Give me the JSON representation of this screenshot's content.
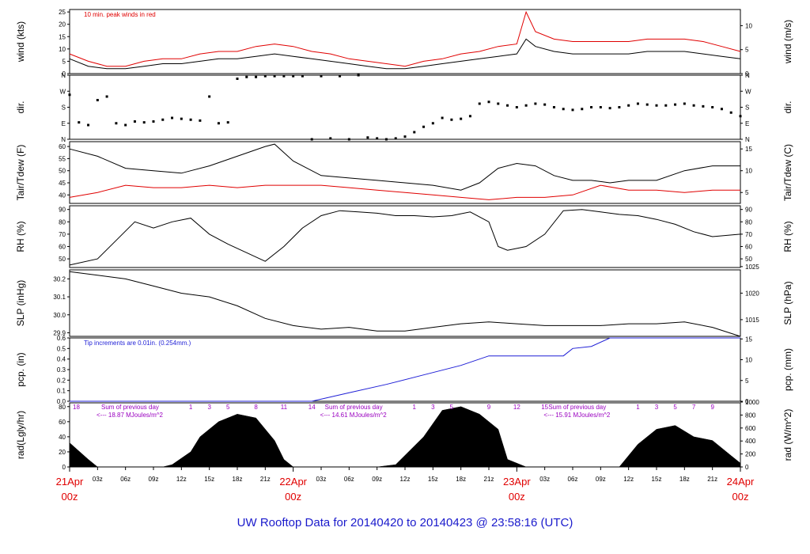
{
  "colors": {
    "black": "#000000",
    "red": "#e00000",
    "blue": "#1f1fd6",
    "purple": "#9a00c0",
    "title": "#1a1acc"
  },
  "title": "UW Rooftop Data for 20140420  to  20140423 @ 23:58:16  (UTC)",
  "x_axis": {
    "hour_labels": [
      "03z",
      "06z",
      "09z",
      "12z",
      "15z",
      "18z",
      "21z"
    ],
    "day_labels": [
      {
        "hour": 0,
        "date": "21Apr",
        "time": "00z"
      },
      {
        "hour": 24,
        "date": "22Apr",
        "time": "00z"
      },
      {
        "hour": 48,
        "date": "23Apr",
        "time": "00z"
      },
      {
        "hour": 72,
        "date": "24Apr",
        "time": "00z"
      }
    ]
  },
  "panels": {
    "wind": {
      "ylabel_left": "wind (kts)",
      "ylabel_right": "wind (m/s)",
      "left_ticks": [
        "0",
        "5",
        "10",
        "15",
        "20",
        "25"
      ],
      "right_ticks": [
        "0",
        "5",
        "10"
      ],
      "note": "10 min. peak winds in red"
    },
    "dir": {
      "ylabel_left": "dir.",
      "ylabel_right": "dir.",
      "ticks": [
        "N",
        "E",
        "S",
        "W",
        "N"
      ]
    },
    "temp": {
      "ylabel_left": "Tair/Tdew (F)",
      "ylabel_right": "Tair/Tdew (C)",
      "left_ticks": [
        "40",
        "45",
        "50",
        "55",
        "60"
      ],
      "right_ticks": [
        "5",
        "10",
        "15"
      ]
    },
    "rh": {
      "ylabel_left": "RH (%)",
      "ylabel_right": "RH (%)",
      "ticks": [
        "50",
        "60",
        "70",
        "80",
        "90"
      ]
    },
    "slp": {
      "ylabel_left": "SLP (inHg)",
      "ylabel_right": "SLP (hPa)",
      "left_ticks": [
        "29.9",
        "30.0",
        "30.1",
        "30.2"
      ],
      "right_ticks": [
        "1015",
        "1020",
        "1025"
      ]
    },
    "pcp": {
      "ylabel_left": "pcp. (in)",
      "ylabel_right": "pcp. (mm)",
      "left_ticks": [
        "0.0",
        "0.1",
        "0.2",
        "0.3",
        "0.4",
        "0.5",
        "0.6"
      ],
      "right_ticks": [
        "0",
        "5",
        "10",
        "15"
      ],
      "note": "Tip increments are 0.01in. (0.254mm.)"
    },
    "rad": {
      "ylabel_left": "rad(Lgly/hr)",
      "ylabel_right": "rad (W/m^2)",
      "left_ticks": [
        "0",
        "20",
        "40",
        "60",
        "80"
      ],
      "right_ticks": [
        "0",
        "200",
        "400",
        "600",
        "800",
        "1000"
      ]
    }
  },
  "rad_annotations": [
    {
      "sum_label": "Sum of previous day",
      "value_label": "<--- 18.87 MJoules/m^2",
      "first_hour": "18",
      "hours": [
        "1",
        "3",
        "5",
        "8",
        "11",
        "14"
      ]
    },
    {
      "sum_label": "Sum of previous day",
      "value_label": "<--- 14.61 MJoules/m^2",
      "hours": [
        "1",
        "3",
        "5",
        "9",
        "12",
        "15"
      ]
    },
    {
      "sum_label": "Sum of previous day",
      "value_label": "<--- 15.91 MJoules/m^2",
      "hours": [
        "1",
        "3",
        "5",
        "7",
        "9"
      ]
    }
  ],
  "chart_data": [
    {
      "type": "line",
      "ylabel": "wind (kts)",
      "ylim": [
        0,
        26
      ],
      "x_unit": "hours since 21Apr 00z",
      "xlim": [
        0,
        72
      ],
      "series": [
        {
          "color": "#000000",
          "x": [
            0,
            2,
            4,
            6,
            8,
            10,
            12,
            14,
            16,
            18,
            20,
            22,
            24,
            26,
            28,
            30,
            32,
            34,
            36,
            38,
            40,
            42,
            44,
            46,
            48,
            49,
            50,
            52,
            54,
            56,
            58,
            60,
            62,
            64,
            66,
            68,
            70,
            72
          ],
          "values": [
            6,
            3,
            2,
            2,
            3,
            4,
            4,
            5,
            6,
            6,
            7,
            8,
            7,
            6,
            5,
            4,
            3,
            2,
            2,
            3,
            4,
            5,
            6,
            7,
            8,
            14,
            11,
            9,
            8,
            8,
            8,
            8,
            9,
            9,
            9,
            8,
            7,
            6
          ]
        },
        {
          "color": "#e00000",
          "x": [
            0,
            2,
            4,
            6,
            8,
            10,
            12,
            14,
            16,
            18,
            20,
            22,
            24,
            26,
            28,
            30,
            32,
            34,
            36,
            38,
            40,
            42,
            44,
            46,
            48,
            49,
            50,
            52,
            54,
            56,
            58,
            60,
            62,
            64,
            66,
            68,
            70,
            72
          ],
          "values": [
            8,
            5,
            3,
            3,
            5,
            6,
            6,
            8,
            9,
            9,
            11,
            12,
            11,
            9,
            8,
            6,
            5,
            4,
            3,
            5,
            6,
            8,
            9,
            11,
            12,
            25,
            17,
            14,
            13,
            13,
            13,
            13,
            14,
            14,
            14,
            13,
            11,
            9
          ]
        }
      ]
    },
    {
      "type": "scatter",
      "ylabel": "dir.",
      "ylim": [
        0,
        360
      ],
      "xlim": [
        0,
        72
      ],
      "series": [
        {
          "color": "#000000",
          "x": [
            0,
            1,
            2,
            3,
            4,
            5,
            6,
            7,
            8,
            9,
            10,
            11,
            12,
            13,
            14,
            15,
            16,
            17,
            18,
            19,
            20,
            21,
            22,
            23,
            24,
            25,
            26,
            27,
            28,
            29,
            30,
            31,
            32,
            33,
            34,
            35,
            36,
            37,
            38,
            39,
            40,
            41,
            42,
            43,
            44,
            45,
            46,
            47,
            48,
            49,
            50,
            51,
            52,
            53,
            54,
            55,
            56,
            57,
            58,
            59,
            60,
            61,
            62,
            63,
            64,
            65,
            66,
            67,
            68,
            69,
            70,
            71,
            72
          ],
          "values": [
            250,
            95,
            80,
            220,
            240,
            90,
            80,
            100,
            95,
            100,
            110,
            120,
            115,
            110,
            105,
            240,
            90,
            95,
            340,
            350,
            350,
            355,
            355,
            355,
            355,
            355,
            0,
            355,
            5,
            355,
            0,
            360,
            10,
            5,
            0,
            5,
            15,
            40,
            70,
            90,
            120,
            110,
            115,
            130,
            200,
            210,
            200,
            190,
            180,
            190,
            200,
            195,
            180,
            170,
            165,
            170,
            180,
            180,
            175,
            180,
            190,
            200,
            195,
            190,
            190,
            195,
            200,
            190,
            185,
            180,
            170,
            150,
            130
          ]
        }
      ]
    },
    {
      "type": "line",
      "ylabel": "Tair/Tdew (F)",
      "ylim": [
        36.5,
        62
      ],
      "xlim": [
        0,
        72
      ],
      "series": [
        {
          "name": "Tair",
          "color": "#000000",
          "x": [
            0,
            3,
            6,
            9,
            12,
            15,
            18,
            21,
            22,
            24,
            27,
            30,
            33,
            36,
            39,
            42,
            44,
            46,
            48,
            50,
            52,
            54,
            56,
            58,
            60,
            63,
            66,
            69,
            72
          ],
          "values": [
            59,
            56,
            51,
            50,
            49,
            52,
            56,
            60,
            61,
            54,
            48,
            47,
            46,
            45,
            44,
            42,
            45,
            51,
            53,
            52,
            48,
            46,
            46,
            45,
            46,
            46,
            50,
            52,
            52
          ]
        },
        {
          "name": "Tdew",
          "color": "#e00000",
          "x": [
            0,
            3,
            6,
            9,
            12,
            15,
            18,
            21,
            24,
            27,
            30,
            33,
            36,
            39,
            42,
            45,
            48,
            51,
            54,
            57,
            60,
            63,
            66,
            69,
            72
          ],
          "values": [
            39,
            41,
            44,
            43,
            43,
            44,
            43,
            44,
            44,
            44,
            43,
            42,
            41,
            40,
            39,
            38,
            39,
            39,
            40,
            44,
            42,
            42,
            41,
            42,
            42
          ]
        }
      ]
    },
    {
      "type": "line",
      "ylabel": "RH (%)",
      "ylim": [
        43,
        93
      ],
      "xlim": [
        0,
        72
      ],
      "series": [
        {
          "color": "#000000",
          "x": [
            0,
            3,
            5,
            7,
            9,
            11,
            13,
            15,
            17,
            19,
            21,
            23,
            25,
            27,
            29,
            31,
            33,
            35,
            37,
            39,
            41,
            43,
            45,
            46,
            47,
            49,
            51,
            53,
            55,
            57,
            59,
            61,
            63,
            65,
            67,
            69,
            72
          ],
          "values": [
            45,
            50,
            65,
            80,
            75,
            80,
            83,
            70,
            62,
            55,
            48,
            60,
            75,
            85,
            89,
            88,
            87,
            85,
            85,
            84,
            85,
            88,
            80,
            60,
            57,
            60,
            70,
            89,
            90,
            88,
            86,
            85,
            82,
            78,
            72,
            68,
            70
          ]
        }
      ]
    },
    {
      "type": "line",
      "ylabel": "SLP (inHg)",
      "ylim": [
        29.88,
        30.25
      ],
      "xlim": [
        0,
        72
      ],
      "series": [
        {
          "color": "#000000",
          "x": [
            0,
            3,
            6,
            9,
            12,
            15,
            18,
            21,
            24,
            27,
            30,
            33,
            36,
            39,
            42,
            45,
            48,
            51,
            54,
            57,
            60,
            63,
            66,
            69,
            72
          ],
          "values": [
            30.24,
            30.22,
            30.2,
            30.16,
            30.12,
            30.1,
            30.05,
            29.98,
            29.94,
            29.92,
            29.93,
            29.91,
            29.91,
            29.93,
            29.95,
            29.96,
            29.95,
            29.94,
            29.94,
            29.94,
            29.95,
            29.95,
            29.96,
            29.93,
            29.88
          ]
        }
      ]
    },
    {
      "type": "line",
      "ylabel": "pcp. (in)",
      "ylim": [
        0,
        0.6
      ],
      "xlim": [
        0,
        72
      ],
      "series": [
        {
          "color": "#1f1fd6",
          "x": [
            0,
            26,
            30,
            34,
            38,
            42,
            45,
            48,
            51,
            53,
            54,
            56,
            58,
            72
          ],
          "values": [
            0,
            0,
            0.08,
            0.16,
            0.25,
            0.34,
            0.43,
            0.43,
            0.43,
            0.43,
            0.5,
            0.52,
            0.6,
            0.6
          ]
        }
      ]
    },
    {
      "type": "area",
      "ylabel": "rad(Lgly/hr)",
      "ylim": [
        0,
        85
      ],
      "xlim": [
        0,
        72
      ],
      "series": [
        {
          "color": "#000000",
          "x": [
            0,
            2,
            3,
            10,
            11,
            13,
            14,
            16,
            18,
            20,
            22,
            23,
            24,
            25,
            33,
            35,
            38,
            40,
            42,
            44,
            46,
            47,
            49,
            58,
            59,
            61,
            63,
            65,
            67,
            69,
            71,
            72
          ],
          "values": [
            32,
            10,
            0,
            0,
            3,
            20,
            40,
            60,
            70,
            65,
            35,
            10,
            0,
            0,
            0,
            3,
            40,
            75,
            80,
            70,
            50,
            10,
            0,
            0,
            0,
            30,
            50,
            55,
            40,
            35,
            15,
            5
          ]
        }
      ]
    }
  ]
}
